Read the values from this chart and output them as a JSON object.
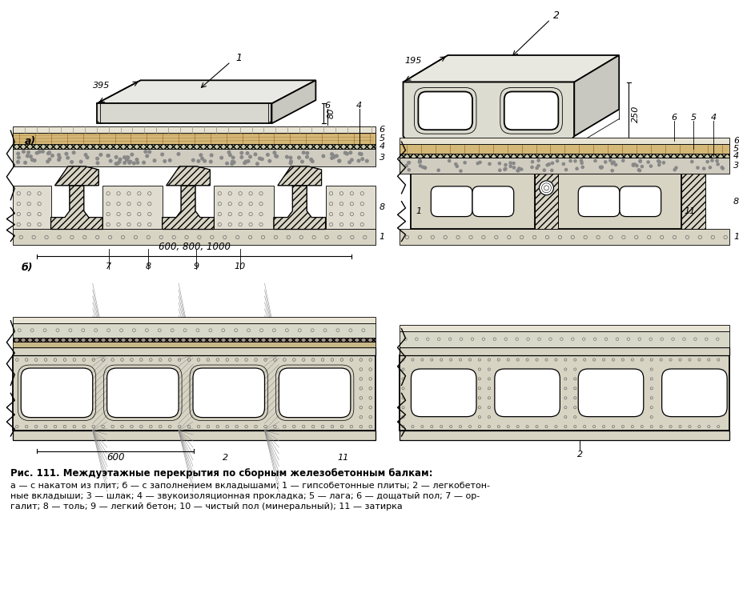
{
  "title": "Рис. 111. Междуэтажные перекрытия по сборным железобетонным балкам:",
  "caption_line1": "а — с накатом из плит; б — с заполнением вкладышами; 1 — гипсобетонные плиты; 2 — легкобетон-",
  "caption_line2": "ные вкладыши; 3 — шлак; 4 — звукоизоляционная прокладка; 5 — лага; 6 — дощатый пол; 7 — ор-",
  "caption_line3": "галит; 8 — толь; 9 — легкий бетон; 10 — чистый пол (минеральный); 11 — затирка",
  "bg_color": "#ffffff"
}
